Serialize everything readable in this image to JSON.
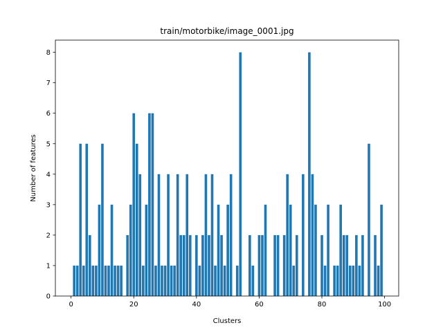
{
  "chart_data": {
    "type": "bar",
    "title": "train/motorbike/image_0001.jpg",
    "xlabel": "Clusters",
    "ylabel": "Number of features",
    "xlim": [
      -5,
      104.5
    ],
    "ylim": [
      0,
      8.4
    ],
    "xticks": [
      0,
      20,
      40,
      60,
      80,
      100
    ],
    "yticks": [
      0,
      1,
      2,
      3,
      4,
      5,
      6,
      7,
      8
    ],
    "bar_color": "#1f77b4",
    "grid": false,
    "x": [
      1,
      2,
      3,
      4,
      5,
      6,
      7,
      8,
      9,
      10,
      11,
      12,
      13,
      14,
      15,
      16,
      17,
      18,
      19,
      20,
      21,
      22,
      23,
      24,
      25,
      26,
      27,
      28,
      29,
      30,
      31,
      32,
      33,
      34,
      35,
      36,
      37,
      38,
      39,
      40,
      41,
      42,
      43,
      44,
      45,
      46,
      47,
      48,
      49,
      50,
      51,
      52,
      53,
      54,
      55,
      56,
      57,
      58,
      59,
      60,
      61,
      62,
      63,
      64,
      65,
      66,
      67,
      68,
      69,
      70,
      71,
      72,
      73,
      74,
      75,
      76,
      77,
      78,
      79,
      80,
      81,
      82,
      83,
      84,
      85,
      86,
      87,
      88,
      89,
      90,
      91,
      92,
      93,
      94,
      95,
      96,
      97,
      98,
      99
    ],
    "values": [
      1,
      1,
      5,
      1,
      5,
      2,
      1,
      1,
      3,
      5,
      1,
      1,
      3,
      1,
      1,
      1,
      0,
      2,
      3,
      6,
      5,
      4,
      1,
      3,
      6,
      6,
      1,
      4,
      1,
      1,
      4,
      1,
      1,
      4,
      2,
      2,
      4,
      2,
      0,
      2,
      1,
      2,
      4,
      2,
      4,
      1,
      3,
      2,
      1,
      3,
      4,
      0,
      1,
      8,
      0,
      0,
      2,
      1,
      0,
      2,
      2,
      3,
      0,
      0,
      2,
      2,
      0,
      2,
      4,
      3,
      1,
      2,
      0,
      4,
      0,
      8,
      4,
      3,
      0,
      2,
      1,
      3,
      0,
      1,
      1,
      3,
      2,
      2,
      1,
      1,
      2,
      1,
      2,
      0,
      5,
      0,
      2,
      1,
      3
    ]
  }
}
